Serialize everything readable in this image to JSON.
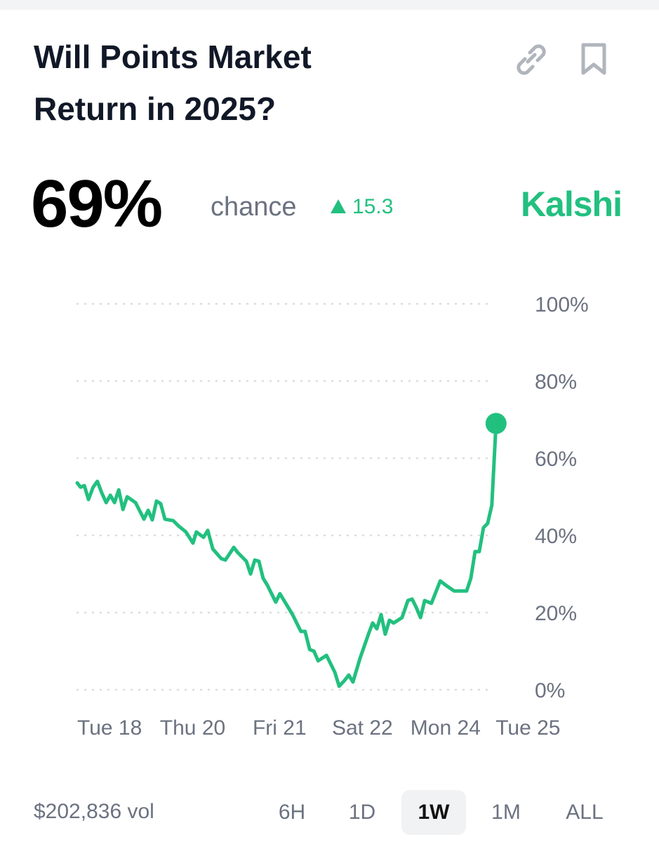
{
  "header": {
    "title": "Will Points Market Return in 2025?",
    "probability": "69%",
    "probability_caption": "chance",
    "change": "15.3",
    "brand": "Kalshi"
  },
  "chart_data": {
    "type": "line",
    "color": "#22c07f",
    "x": [
      0,
      0.8,
      1.7,
      2.7,
      3.8,
      4.8,
      5.9,
      6.9,
      7.9,
      8.9,
      9.9,
      10.9,
      11.9,
      13.9,
      15.9,
      16.9,
      17.9,
      18.9,
      19.9,
      20.9,
      22.9,
      24.2,
      25.9,
      27.6,
      28.4,
      30.1,
      31.1,
      32.3,
      34.3,
      35.3,
      37.3,
      38.3,
      40.3,
      41.3,
      42.3,
      43.3,
      44.3,
      45.3,
      47.3,
      48.3,
      49.3,
      51.3,
      53.3,
      54.3,
      55.4,
      56.4,
      57.4,
      59.4,
      61.4,
      62.4,
      63.7,
      64.7,
      65.7,
      67.4,
      69.4,
      70.4,
      71.4,
      72.4,
      73.4,
      74.4,
      75.4,
      77.4,
      78.8,
      79.8,
      80.8,
      81.8,
      82.8,
      84.4,
      86.5,
      87.8,
      89.8,
      92.8,
      93.8,
      94.8,
      95.8,
      96.8,
      97.8,
      98.8,
      99.8
    ],
    "values": [
      53.6,
      52.5,
      52.9,
      49.3,
      52.5,
      54,
      50.9,
      48.5,
      50.4,
      48.5,
      51.8,
      46.7,
      50,
      48.5,
      44.2,
      46.5,
      44,
      48.9,
      48.2,
      44.2,
      43.8,
      42.4,
      40.9,
      38,
      40.9,
      39.5,
      41.3,
      36.5,
      34,
      33.6,
      36.9,
      35.5,
      33.3,
      30,
      33.6,
      33.3,
      28.9,
      27.1,
      22.7,
      24.9,
      23.1,
      19.5,
      15.1,
      15.1,
      10.4,
      10,
      7.5,
      8.9,
      4.5,
      0.9,
      2.4,
      3.8,
      2,
      8.2,
      14.4,
      17.3,
      15.8,
      19.5,
      14.4,
      18,
      17.3,
      18.7,
      23.1,
      23.5,
      21.3,
      18.7,
      23.1,
      22.4,
      28.2,
      27.1,
      25.6,
      25.6,
      28.9,
      35.8,
      35.8,
      42,
      43.1,
      47.8,
      69
    ],
    "xlim": [
      0,
      100
    ],
    "xticks": [
      {
        "value": 0,
        "label": "Tue 18"
      },
      {
        "value": 19.7,
        "label": "Thu 20"
      },
      {
        "value": 41.8,
        "label": "Fri 21"
      },
      {
        "value": 60.7,
        "label": "Sat 22"
      },
      {
        "value": 79.4,
        "label": "Mon 24"
      },
      {
        "value": 99.7,
        "label": "Tue 25"
      }
    ],
    "ylim": [
      0,
      100
    ],
    "yticks": [
      {
        "value": 0,
        "label": "0%"
      },
      {
        "value": 20,
        "label": "20%"
      },
      {
        "value": 40,
        "label": "40%"
      },
      {
        "value": 60,
        "label": "60%"
      },
      {
        "value": 80,
        "label": "80%"
      },
      {
        "value": 100,
        "label": "100%"
      }
    ],
    "grid": true
  },
  "footer": {
    "volume": "$202,836 vol",
    "ranges": [
      "6H",
      "1D",
      "1W",
      "1M",
      "ALL"
    ],
    "selected_range": "1W"
  }
}
